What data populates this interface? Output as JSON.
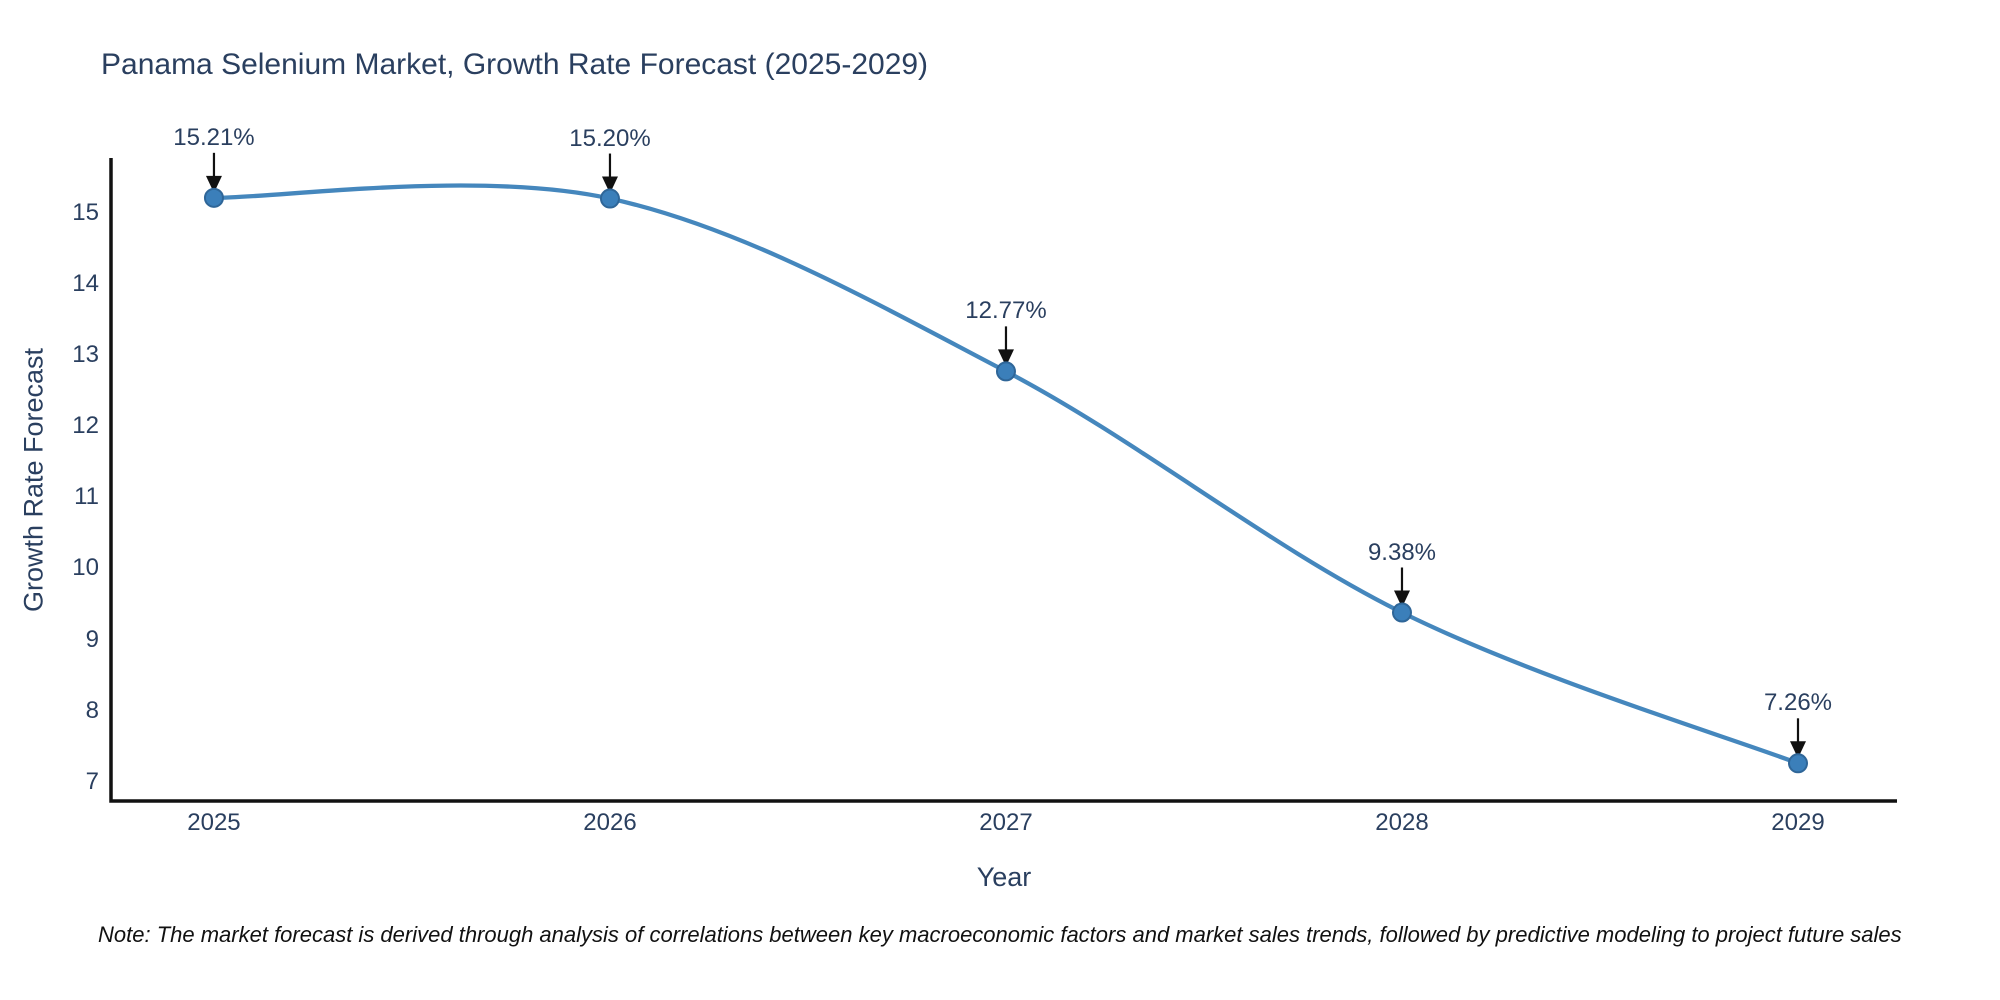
{
  "title": "Panama Selenium Market, Growth Rate Forecast (2025-2029)",
  "note": "Note: The market forecast is derived through analysis of correlations between key macroeconomic factors and market sales trends, followed by predictive modeling to project future sales",
  "chart_data": {
    "type": "line",
    "title": "Panama Selenium Market, Growth Rate Forecast (2025-2029)",
    "xlabel": "Year",
    "ylabel": "Growth Rate Forecast",
    "x": [
      2025,
      2026,
      2027,
      2028,
      2029
    ],
    "values": [
      15.21,
      15.2,
      12.77,
      9.38,
      7.26
    ],
    "point_labels": [
      "15.21%",
      "15.20%",
      "12.77%",
      "9.38%",
      "7.26%"
    ],
    "xticks": [
      "2025",
      "2026",
      "2027",
      "2028",
      "2029"
    ],
    "yticks": [
      7,
      8,
      9,
      10,
      11,
      12,
      13,
      14,
      15
    ],
    "xlim": [
      2024.74,
      2029.25
    ],
    "ylim": [
      6.73,
      15.77
    ],
    "line_shape": "spline",
    "grid": false,
    "legend": false,
    "colors": {
      "line": "#4587bd",
      "marker_fill": "#3b7fba",
      "marker_edge": "#2f6698",
      "axis": "#111111",
      "arrow": "#111111",
      "text": "#2a3f5f",
      "note_text": "#111111",
      "background": "#ffffff"
    }
  }
}
